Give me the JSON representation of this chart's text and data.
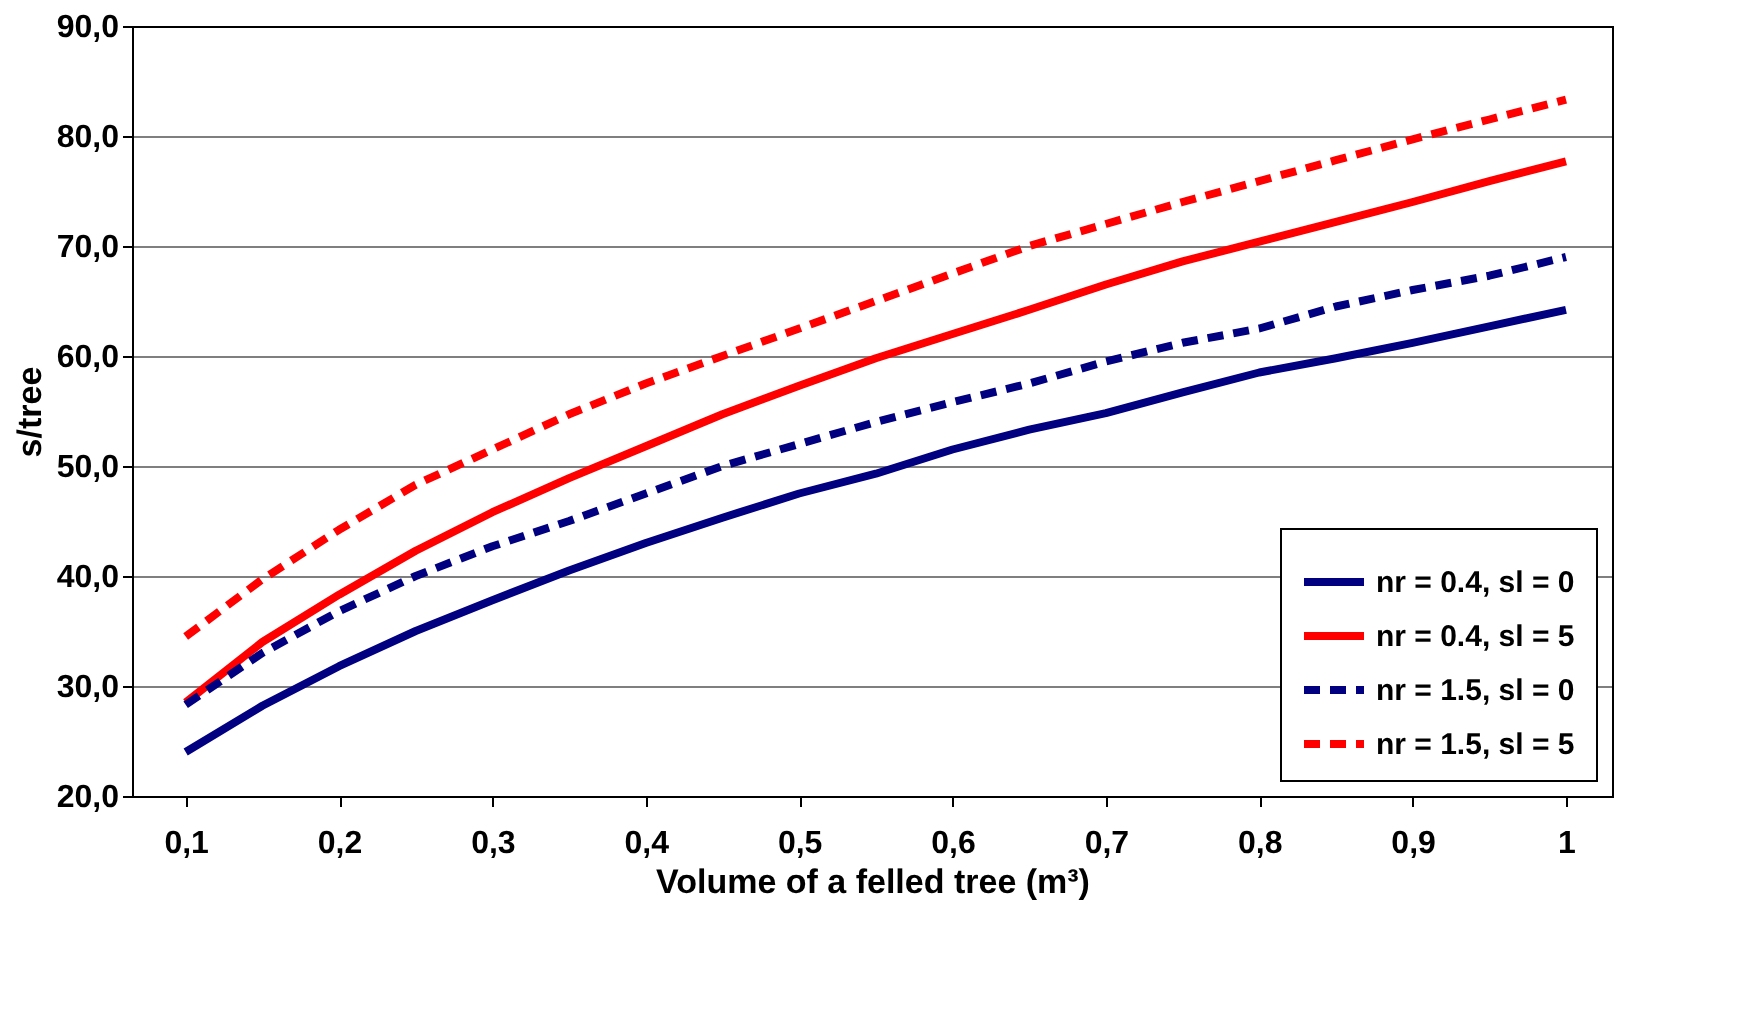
{
  "chart_data": {
    "type": "line",
    "xlabel": "Volume of a felled tree (m³)",
    "ylabel": "s/tree",
    "x": [
      0.1,
      0.15,
      0.2,
      0.25,
      0.3,
      0.35,
      0.4,
      0.45,
      0.5,
      0.55,
      0.6,
      0.65,
      0.7,
      0.75,
      0.8,
      0.85,
      0.9,
      0.95,
      1
    ],
    "series": [
      {
        "name": "nr = 0.4, sl = 0",
        "color": "#000080",
        "line_style": "solid",
        "values": [
          24,
          28.2,
          31.8,
          35,
          37.8,
          40.5,
          43,
          45.3,
          47.5,
          49.3,
          51.5,
          53.3,
          54.8,
          56.7,
          58.5,
          59.8,
          61.2,
          62.7,
          64.2
        ]
      },
      {
        "name": "nr = 0.4, sl = 5",
        "color": "#ff0000",
        "line_style": "solid",
        "values": [
          28.5,
          34,
          38.3,
          42.3,
          45.8,
          48.9,
          51.8,
          54.7,
          57.3,
          59.8,
          62,
          64.2,
          66.5,
          68.6,
          70.4,
          72.2,
          74,
          75.9,
          77.7
        ]
      },
      {
        "name": "nr = 1.5, sl = 0",
        "color": "#000080",
        "line_style": "dashed",
        "values": [
          28.3,
          33,
          36.8,
          40,
          42.7,
          45,
          47.5,
          50,
          52,
          54,
          55.8,
          57.5,
          59.5,
          61.2,
          62.5,
          64.5,
          66,
          67.3,
          69
        ]
      },
      {
        "name": "nr = 1.5, sl = 5",
        "color": "#ff0000",
        "line_style": "dashed",
        "values": [
          34.5,
          39.7,
          44.2,
          48.3,
          51.5,
          54.7,
          57.5,
          60,
          62.5,
          65,
          67.5,
          70,
          72,
          74,
          75.9,
          77.8,
          79.7,
          81.5,
          83.3
        ]
      }
    ],
    "xlim": [
      0.065,
      1.03
    ],
    "xticks": [
      {
        "value": 0.1,
        "label": "0,1"
      },
      {
        "value": 0.2,
        "label": "0,2"
      },
      {
        "value": 0.3,
        "label": "0,3"
      },
      {
        "value": 0.4,
        "label": "0,4"
      },
      {
        "value": 0.5,
        "label": "0,5"
      },
      {
        "value": 0.6,
        "label": "0,6"
      },
      {
        "value": 0.7,
        "label": "0,7"
      },
      {
        "value": 0.8,
        "label": "0,8"
      },
      {
        "value": 0.9,
        "label": "0,9"
      },
      {
        "value": 1,
        "label": "1"
      }
    ],
    "ylim": [
      20,
      90
    ],
    "yticks": [
      {
        "value": 20,
        "label": "20,0"
      },
      {
        "value": 30,
        "label": "30,0"
      },
      {
        "value": 40,
        "label": "40,0"
      },
      {
        "value": 50,
        "label": "50,0"
      },
      {
        "value": 60,
        "label": "60,0"
      },
      {
        "value": 70,
        "label": "70,0"
      },
      {
        "value": 80,
        "label": "80,0"
      },
      {
        "value": 90,
        "label": "90,0"
      }
    ],
    "grid": "y",
    "legend": "bottom right"
  }
}
